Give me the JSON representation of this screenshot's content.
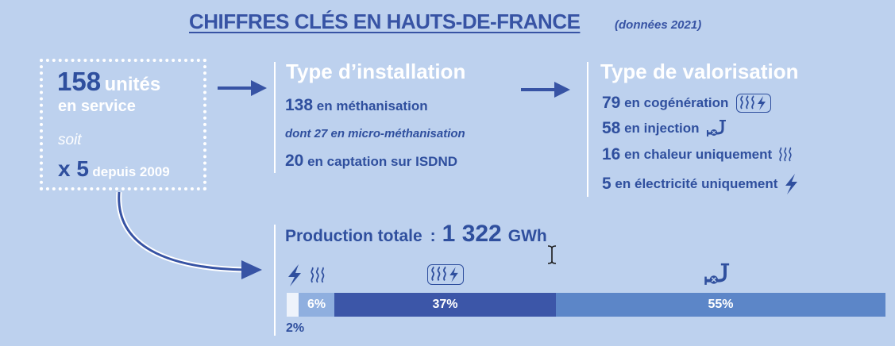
{
  "header": {
    "title": "CHIFFRES CLÉS EN HAUTS-DE-FRANCE",
    "subtitle": "(données 2021)"
  },
  "units": {
    "number": "158",
    "unit_label": "unités",
    "in_service": "en service",
    "soit": "soit",
    "multiplier": "x 5",
    "since": "depuis 2009"
  },
  "installation": {
    "heading": "Type d’installation",
    "items": [
      {
        "value": "138",
        "label": "en méthanisation"
      },
      {
        "value": "",
        "label": "dont 27 en micro-méthanisation"
      },
      {
        "value": "20",
        "label": "en captation sur ISDND"
      }
    ]
  },
  "valorisation": {
    "heading": "Type de valorisation",
    "items": [
      {
        "value": "79",
        "label": "en cogénération",
        "icon": "cogeneration-icon"
      },
      {
        "value": "58",
        "label": "en injection",
        "icon": "gas-pipe-icon"
      },
      {
        "value": "16",
        "label": "en chaleur uniquement",
        "icon": "heat-icon"
      },
      {
        "value": "5",
        "label": "en électricité uniquement",
        "icon": "lightning-icon"
      }
    ]
  },
  "production": {
    "label": "Production totale",
    "colon": ":",
    "value": "1 322",
    "unit": "GWh",
    "segments": [
      {
        "label": "",
        "outside_label": "2%",
        "percent": 2,
        "color": "#eef3fb",
        "icons": [
          "lightning-icon"
        ]
      },
      {
        "label": "6%",
        "percent": 6,
        "color": "#8fafdf",
        "icons": [
          "heat-icon"
        ]
      },
      {
        "label": "37%",
        "percent": 37,
        "color": "#3c56a8",
        "icons": [
          "cogeneration-icon"
        ]
      },
      {
        "label": "55%",
        "percent": 55,
        "color": "#5c86c8",
        "icons": [
          "gas-pipe-icon"
        ]
      }
    ]
  },
  "colors": {
    "background": "#bdd1ee",
    "primary": "#2f4f9e",
    "white": "#ffffff"
  }
}
